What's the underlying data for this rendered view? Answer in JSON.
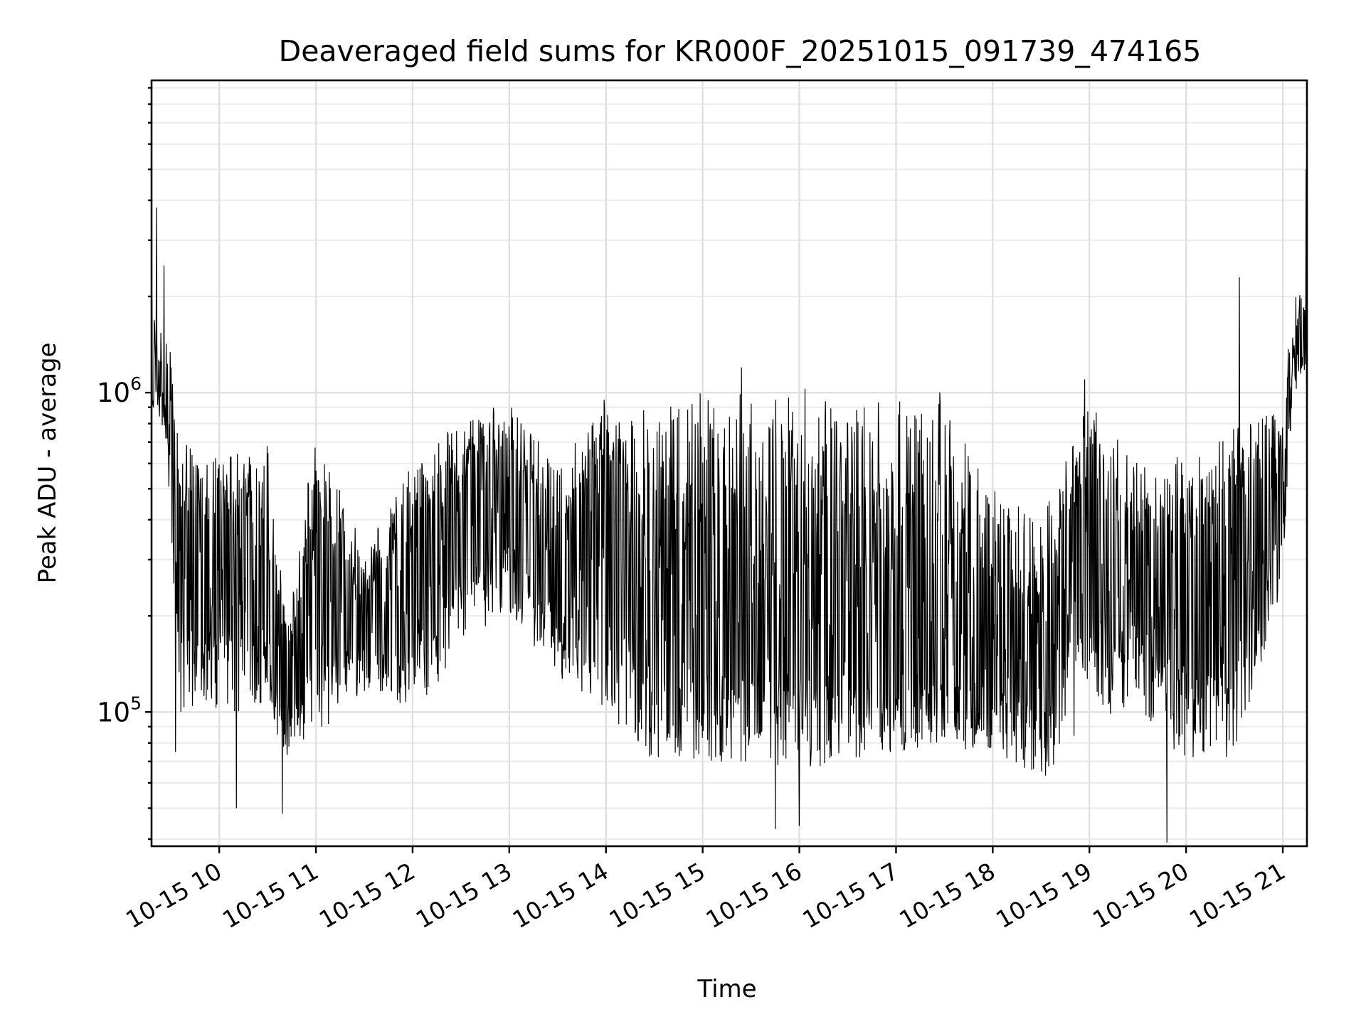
{
  "chart_data": {
    "type": "line",
    "title": "Deaveraged field sums for KR000F_20251015_091739_474165",
    "xlabel": "Time",
    "ylabel": "Peak ADU - average",
    "yscale": "log",
    "ylim": [
      38000,
      9500000
    ],
    "xlim_hours": [
      9.3,
      21.25
    ],
    "grid": true,
    "legend": "none",
    "x_ticks": [
      {
        "hour": 10,
        "label": "10-15 10"
      },
      {
        "hour": 11,
        "label": "10-15 11"
      },
      {
        "hour": 12,
        "label": "10-15 12"
      },
      {
        "hour": 13,
        "label": "10-15 13"
      },
      {
        "hour": 14,
        "label": "10-15 14"
      },
      {
        "hour": 15,
        "label": "10-15 15"
      },
      {
        "hour": 16,
        "label": "10-15 16"
      },
      {
        "hour": 17,
        "label": "10-15 17"
      },
      {
        "hour": 18,
        "label": "10-15 18"
      },
      {
        "hour": 19,
        "label": "10-15 19"
      },
      {
        "hour": 20,
        "label": "10-15 20"
      },
      {
        "hour": 21,
        "label": "10-15 21"
      }
    ],
    "y_ticks": [
      {
        "value": 100000,
        "base": "10",
        "exp": "5"
      },
      {
        "value": 1000000,
        "base": "10",
        "exp": "6"
      }
    ],
    "series_color": "#000000",
    "envelope": {
      "hours": [
        9.3,
        9.45,
        9.6,
        10.0,
        10.5,
        10.7,
        11.0,
        11.5,
        12.0,
        12.5,
        13.0,
        13.5,
        14.0,
        14.5,
        15.0,
        15.5,
        16.0,
        16.5,
        17.0,
        17.5,
        18.0,
        18.5,
        19.0,
        19.5,
        20.0,
        20.5,
        21.0,
        21.1,
        21.25
      ],
      "low": [
        850000,
        700000,
        90000,
        100000,
        100000,
        70000,
        85000,
        110000,
        100000,
        150000,
        200000,
        130000,
        100000,
        70000,
        70000,
        70000,
        65000,
        70000,
        75000,
        80000,
        75000,
        60000,
        95000,
        100000,
        70000,
        70000,
        250000,
        1000000,
        1050000
      ],
      "high": [
        2000000,
        1800000,
        700000,
        620000,
        700000,
        180000,
        780000,
        320000,
        600000,
        850000,
        920000,
        600000,
        900000,
        900000,
        1000000,
        1050000,
        1030000,
        1020000,
        1020000,
        1000000,
        500000,
        400000,
        950000,
        600000,
        650000,
        800000,
        900000,
        2000000,
        2100000
      ],
      "center": [
        1300000,
        1100000,
        300000,
        280000,
        250000,
        120000,
        250000,
        180000,
        250000,
        400000,
        500000,
        250000,
        450000,
        180000,
        200000,
        200000,
        200000,
        200000,
        180000,
        170000,
        150000,
        150000,
        350000,
        250000,
        220000,
        250000,
        500000,
        1400000,
        1500000
      ]
    },
    "spikes": [
      {
        "hour": 9.35,
        "value": 3800000
      },
      {
        "hour": 9.43,
        "value": 2500000
      },
      {
        "hour": 9.55,
        "value": 75000
      },
      {
        "hour": 10.18,
        "value": 50000
      },
      {
        "hour": 10.65,
        "value": 48000
      },
      {
        "hour": 13.98,
        "value": 950000
      },
      {
        "hour": 15.4,
        "value": 1200000
      },
      {
        "hour": 15.75,
        "value": 43000
      },
      {
        "hour": 16.0,
        "value": 44000
      },
      {
        "hour": 18.95,
        "value": 1100000
      },
      {
        "hour": 19.8,
        "value": 39000
      },
      {
        "hour": 20.55,
        "value": 2300000
      },
      {
        "hour": 21.24,
        "value": 5000000
      }
    ]
  }
}
